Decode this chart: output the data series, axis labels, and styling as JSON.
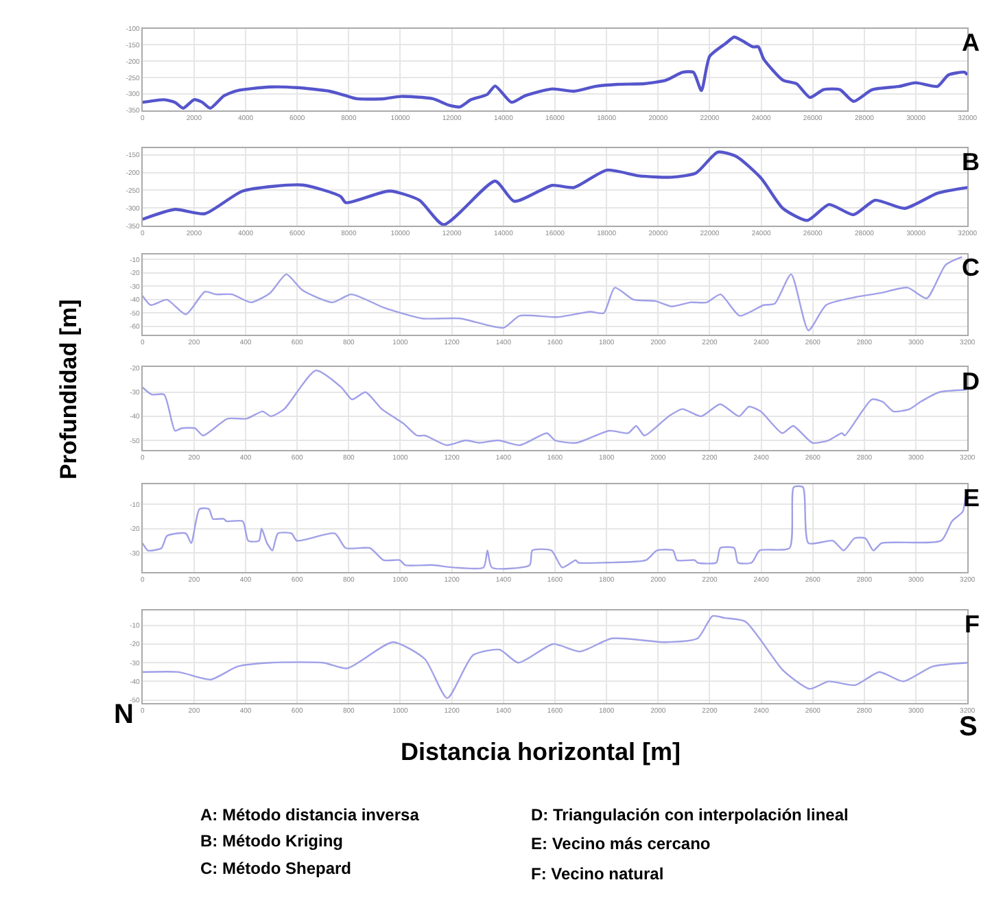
{
  "chart_data": [
    {
      "type": "line",
      "title": "A",
      "xlim": [
        0,
        32000
      ],
      "xticks": [
        0,
        2000,
        4000,
        6000,
        8000,
        10000,
        12000,
        14000,
        16000,
        18000,
        20000,
        22000,
        24000,
        26000,
        28000,
        30000,
        32000
      ],
      "ylim": [
        -350,
        -100
      ],
      "yticks": [
        -100,
        -150,
        -200,
        -250,
        -300,
        -350
      ],
      "grid": true,
      "marker": "none",
      "line_style": "solid",
      "series": [
        {
          "color": "#5555cc",
          "x": [
            0,
            840,
            1260,
            1580,
            2000,
            2320,
            2630,
            3160,
            3680,
            4950,
            6000,
            7260,
            7900,
            8300,
            9370,
            10000,
            11260,
            11890,
            12310,
            12740,
            13370,
            13680,
            14310,
            14840,
            15890,
            16740,
            17580,
            18420,
            19470,
            20310,
            20950,
            21370,
            21680,
            22000,
            22630,
            22950,
            23260,
            23680,
            23890,
            24100,
            24840,
            25370,
            25890,
            26420,
            27050,
            27580,
            28310,
            29360,
            29990,
            30840,
            31260,
            31890,
            32000
          ],
          "values": [
            -326,
            -318,
            -326,
            -344,
            -318,
            -326,
            -344,
            -306,
            -290,
            -279,
            -281,
            -292,
            -306,
            -315,
            -315,
            -308,
            -315,
            -335,
            -340,
            -318,
            -302,
            -276,
            -326,
            -306,
            -285,
            -292,
            -277,
            -271,
            -269,
            -258,
            -234,
            -234,
            -290,
            -185,
            -145,
            -126,
            -137,
            -156,
            -156,
            -194,
            -258,
            -269,
            -311,
            -287,
            -287,
            -323,
            -287,
            -277,
            -266,
            -277,
            -242,
            -234,
            -242
          ]
        }
      ]
    },
    {
      "type": "line",
      "title": "B",
      "xlim": [
        0,
        32000
      ],
      "xticks": [
        0,
        2000,
        4000,
        6000,
        8000,
        10000,
        12000,
        14000,
        16000,
        18000,
        20000,
        22000,
        24000,
        26000,
        28000,
        30000,
        32000
      ],
      "ylim": [
        -350,
        -131
      ],
      "yticks": [
        -150,
        -200,
        -250,
        -300,
        -350
      ],
      "grid": true,
      "marker": "none",
      "line_style": "solid",
      "series": [
        {
          "color": "#5555cc",
          "x": [
            0,
            1260,
            2420,
            3890,
            6210,
            7680,
            7890,
            9580,
            10740,
            11680,
            13680,
            14420,
            15890,
            16740,
            18000,
            19260,
            20520,
            21470,
            22310,
            23050,
            24000,
            24840,
            25790,
            26630,
            27580,
            28420,
            29570,
            30840,
            32000
          ],
          "values": [
            -332,
            -304,
            -316,
            -252,
            -235,
            -267,
            -285,
            -252,
            -278,
            -347,
            -224,
            -281,
            -236,
            -242,
            -193,
            -209,
            -213,
            -201,
            -142,
            -155,
            -216,
            -301,
            -335,
            -290,
            -319,
            -278,
            -301,
            -258,
            -242
          ]
        }
      ]
    },
    {
      "type": "line",
      "title": "C",
      "xlim": [
        0,
        3200
      ],
      "xticks": [
        0,
        200,
        400,
        600,
        800,
        1000,
        1200,
        1400,
        1600,
        1800,
        2000,
        2200,
        2400,
        2600,
        2800,
        3000,
        3200
      ],
      "ylim": [
        -66,
        -6
      ],
      "yticks": [
        -10,
        -20,
        -30,
        -40,
        -50,
        -60
      ],
      "grid": true,
      "marker": "none",
      "line_style": "solid",
      "series": [
        {
          "color": "#a0a0e8",
          "x": [
            0,
            32,
            95,
            168,
            242,
            284,
            347,
            421,
            495,
            558,
            621,
            737,
            810,
            937,
            1084,
            1231,
            1400,
            1463,
            1610,
            1737,
            1789,
            1832,
            1905,
            1989,
            2052,
            2126,
            2189,
            2242,
            2316,
            2410,
            2452,
            2516,
            2583,
            2652,
            2768,
            2863,
            2968,
            3042,
            3115,
            3179
          ],
          "values": [
            -37,
            -44,
            -40,
            -51,
            -34,
            -36,
            -36,
            -42,
            -35,
            -21,
            -33,
            -42,
            -36,
            -46,
            -54,
            -54,
            -61,
            -52,
            -53,
            -49,
            -50,
            -31,
            -40,
            -41,
            -45,
            -42,
            -42,
            -36,
            -52,
            -44,
            -43,
            -21,
            -63,
            -44,
            -38,
            -35,
            -31,
            -39,
            -14,
            -8
          ]
        }
      ]
    },
    {
      "type": "line",
      "title": "D",
      "ylabel": "Profundidad [m]",
      "xlim": [
        0,
        3200
      ],
      "xticks": [
        0,
        200,
        400,
        600,
        800,
        1000,
        1200,
        1400,
        1600,
        1800,
        2000,
        2200,
        2400,
        2600,
        2800,
        3000,
        3200
      ],
      "ylim": [
        -54,
        -19.6
      ],
      "yticks": [
        -20,
        -30,
        -40,
        -50
      ],
      "grid": true,
      "marker": "none",
      "line_style": "solid",
      "series": [
        {
          "color": "#a0a0e8",
          "x": [
            0,
            36,
            84,
            126,
            151,
            204,
            235,
            330,
            403,
            466,
            498,
            550,
            672,
            771,
            813,
            865,
            928,
            1012,
            1065,
            1096,
            1180,
            1254,
            1306,
            1380,
            1464,
            1569,
            1600,
            1684,
            1810,
            1884,
            1915,
            1947,
            2041,
            2094,
            2167,
            2241,
            2314,
            2352,
            2398,
            2482,
            2524,
            2598,
            2661,
            2713,
            2724,
            2829,
            2871,
            2913,
            2976,
            3018,
            3091,
            3196
          ],
          "values": [
            -28,
            -31,
            -31,
            -46,
            -45,
            -45,
            -48,
            -41,
            -41,
            -38,
            -40,
            -37,
            -21,
            -28,
            -33,
            -30,
            -37,
            -43,
            -48,
            -48,
            -52,
            -50,
            -51,
            -50,
            -52,
            -47,
            -50,
            -51,
            -46,
            -47,
            -44,
            -48,
            -40,
            -37,
            -40,
            -35,
            -40,
            -36,
            -38,
            -47,
            -44,
            -51,
            -50,
            -47,
            -48,
            -33,
            -34,
            -38,
            -37,
            -34,
            -30,
            -29
          ]
        }
      ]
    },
    {
      "type": "line",
      "title": "E",
      "xlim": [
        0,
        3200
      ],
      "xticks": [
        0,
        200,
        400,
        600,
        800,
        1000,
        1200,
        1400,
        1600,
        1800,
        2000,
        2200,
        2400,
        2600,
        2800,
        3000,
        3200
      ],
      "ylim": [
        -38,
        -1.7
      ],
      "yticks": [
        -10,
        -20,
        -30
      ],
      "grid": true,
      "marker": "none",
      "line_style": "solid",
      "series": [
        {
          "color": "#a0a0e8",
          "x": [
            0,
            21,
            74,
            95,
            168,
            189,
            221,
            258,
            273,
            315,
            326,
            389,
            410,
            452,
            462,
            483,
            504,
            525,
            578,
            599,
            746,
            788,
            882,
            935,
            998,
            1019,
            1124,
            1208,
            1323,
            1338,
            1355,
            1502,
            1512,
            1586,
            1628,
            1680,
            1691,
            1796,
            1953,
            1995,
            2058,
            2073,
            2142,
            2153,
            2226,
            2241,
            2295,
            2310,
            2363,
            2394,
            2510,
            2526,
            2562,
            2583,
            2678,
            2720,
            2762,
            2804,
            2835,
            2867,
            3098,
            3140,
            3182,
            3192
          ],
          "values": [
            -26,
            -29,
            -28,
            -23,
            -22,
            -26,
            -12,
            -12,
            -16,
            -16,
            -17,
            -17,
            -25,
            -25,
            -20,
            -26,
            -29,
            -22,
            -22,
            -25,
            -22,
            -28,
            -28,
            -33,
            -33,
            -35,
            -35,
            -36,
            -36,
            -29,
            -36,
            -35,
            -29,
            -29,
            -36,
            -33,
            -34,
            -34,
            -33,
            -29,
            -29,
            -33,
            -33,
            -34,
            -34,
            -28,
            -28,
            -34,
            -34,
            -29,
            -28,
            -3,
            -3,
            -26,
            -25,
            -29,
            -24,
            -24,
            -29,
            -26,
            -25,
            -17,
            -13,
            -7
          ]
        }
      ]
    },
    {
      "type": "line",
      "title": "F",
      "xlabel": "Distancia horizontal [m]",
      "xlim": [
        0,
        3200
      ],
      "xticks": [
        0,
        200,
        400,
        600,
        800,
        1000,
        1200,
        1400,
        1600,
        1800,
        2000,
        2200,
        2400,
        2600,
        2800,
        3000,
        3200
      ],
      "ylim": [
        -51.5,
        -2
      ],
      "yticks": [
        -10,
        -20,
        -30,
        -40,
        -50
      ],
      "grid": true,
      "marker": "none",
      "line_style": "solid",
      "annotations": [
        "N",
        "S",
        "A: Método distancia inversa",
        "B: Método Kriging",
        "C: Método Shepard",
        "D: Triangulación con interpolación lineal",
        "E: Vecino más cercano",
        "F: Vecino natural"
      ],
      "series": [
        {
          "color": "#a0a0e8",
          "x": [
            0,
            141,
            265,
            369,
            494,
            701,
            794,
            971,
            1095,
            1182,
            1282,
            1385,
            1458,
            1593,
            1697,
            1821,
            2028,
            2153,
            2211,
            2257,
            2339,
            2484,
            2588,
            2661,
            2765,
            2858,
            2951,
            3065,
            3200
          ],
          "values": [
            -35,
            -35,
            -39,
            -32,
            -30,
            -30,
            -33,
            -19,
            -28,
            -49,
            -26,
            -23,
            -30,
            -20,
            -24,
            -17,
            -19,
            -17,
            -5,
            -6,
            -8,
            -34,
            -44,
            -40,
            -42,
            -35,
            -40,
            -32,
            -30
          ]
        }
      ]
    }
  ]
}
